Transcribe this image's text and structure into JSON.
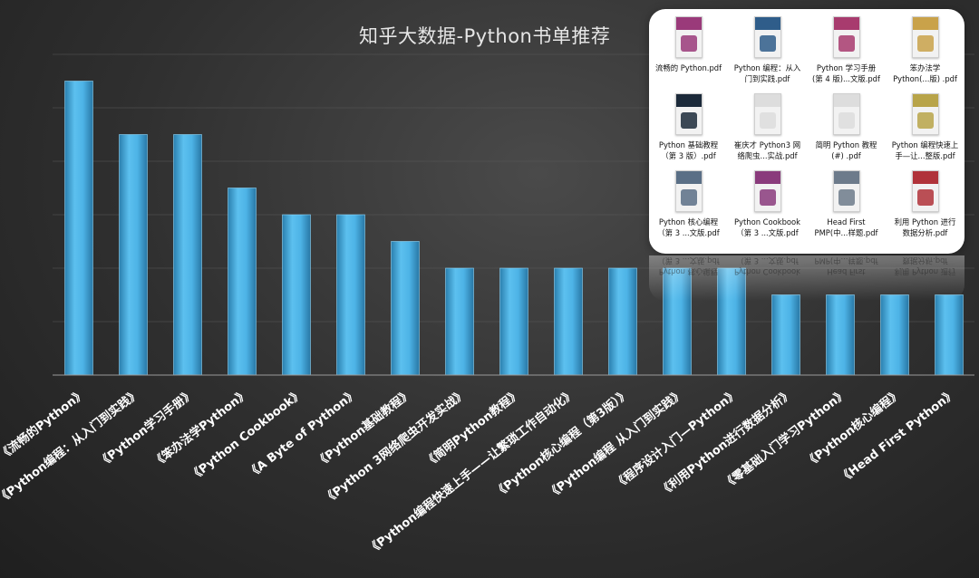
{
  "chart_data": {
    "type": "bar",
    "title": "知乎大数据-Python书单推荐",
    "categories": [
      "《流畅的Python》",
      "《Python编程：从入门到实践》",
      "《Python学习手册》",
      "《笨办法学Python》",
      "《Python Cookbook》",
      "《A Byte of Python》",
      "《Python基础教程》",
      "《Python 3网络爬虫开发实战》",
      "《简明Python教程》",
      "《Python编程快速上手——让繁琐工作自动化》",
      "《Python核心编程（第3版）》",
      "《Python编程 从入门到实践》",
      "《程序设计入门—Python》",
      "《利用Python进行数据分析》",
      "《零基础入门学习Python》",
      "《Python核心编程》",
      "《Head First Python》"
    ],
    "values": [
      11,
      9,
      9,
      7,
      6,
      6,
      5,
      4,
      4,
      4,
      4,
      4,
      4,
      3,
      3,
      3,
      3
    ],
    "ylim": [
      0,
      12
    ],
    "grid": true,
    "bar_color": "#3aa7dd",
    "xlabel": "",
    "ylabel": ""
  },
  "file_panel": {
    "files": [
      {
        "name": "流畅的 Python.pdf",
        "thumb": "#9a3a7a"
      },
      {
        "name": "Python 编程：从入\n门到实践.pdf",
        "thumb": "#2f5d8a"
      },
      {
        "name": "Python 学习手册\n(第 4 版)...文版.pdf",
        "thumb": "#a83b6e"
      },
      {
        "name": "笨办法学\nPython(...版) .pdf",
        "thumb": "#c9a24a"
      },
      {
        "name": "Python 基础教程\n（第 3 版）.pdf",
        "thumb": "#1c2a3a"
      },
      {
        "name": "崔庆才 Python3 网\n络爬虫...实战.pdf",
        "thumb": "#dddddd"
      },
      {
        "name": "简明 Python 教程\n(#)  .pdf",
        "thumb": "#dddddd"
      },
      {
        "name": "Python 编程快速上\n手—让...整版.pdf",
        "thumb": "#b8a449"
      },
      {
        "name": "Python 核心编程\n（第 3 ...文版.pdf",
        "thumb": "#5a6f86"
      },
      {
        "name": "Python Cookbook\n（第 3 ...文版.pdf",
        "thumb": "#8a3b7c"
      },
      {
        "name": "Head First\nPMP(中...样题.pdf",
        "thumb": "#6d7b8b"
      },
      {
        "name": "利用 Python 进行\n数据分析.pdf",
        "thumb": "#b0333a"
      }
    ]
  }
}
